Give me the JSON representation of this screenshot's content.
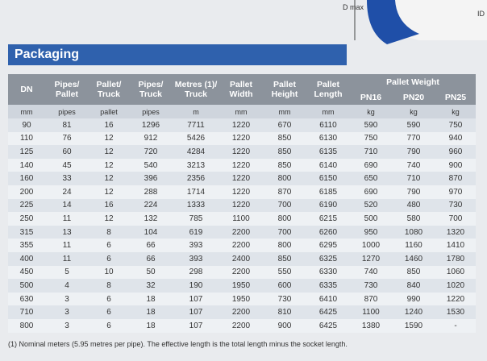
{
  "figure": {
    "dmax_label": "D max",
    "id_label": "ID"
  },
  "section_title": "Packaging",
  "table": {
    "header": [
      [
        "DN"
      ],
      [
        "Pipes/",
        "Pallet"
      ],
      [
        "Pallet/",
        "Truck"
      ],
      [
        "Pipes/",
        "Truck"
      ],
      [
        "Metres (1)/",
        "Truck"
      ],
      [
        "Pallet",
        "Width"
      ],
      [
        "Pallet",
        "Height"
      ],
      [
        "Pallet",
        "Length"
      ]
    ],
    "group_header": "Pallet Weight",
    "group_columns": [
      "PN16",
      "PN20",
      "PN25"
    ],
    "units": [
      "mm",
      "pipes",
      "pallet",
      "pipes",
      "m",
      "mm",
      "mm",
      "mm",
      "kg",
      "kg",
      "kg"
    ],
    "rows": [
      [
        "90",
        "81",
        "16",
        "1296",
        "7711",
        "1220",
        "670",
        "6110",
        "590",
        "590",
        "750"
      ],
      [
        "110",
        "76",
        "12",
        "912",
        "5426",
        "1220",
        "850",
        "6130",
        "750",
        "770",
        "940"
      ],
      [
        "125",
        "60",
        "12",
        "720",
        "4284",
        "1220",
        "850",
        "6135",
        "710",
        "790",
        "960"
      ],
      [
        "140",
        "45",
        "12",
        "540",
        "3213",
        "1220",
        "850",
        "6140",
        "690",
        "740",
        "900"
      ],
      [
        "160",
        "33",
        "12",
        "396",
        "2356",
        "1220",
        "800",
        "6150",
        "650",
        "710",
        "870"
      ],
      [
        "200",
        "24",
        "12",
        "288",
        "1714",
        "1220",
        "870",
        "6185",
        "690",
        "790",
        "970"
      ],
      [
        "225",
        "14",
        "16",
        "224",
        "1333",
        "1220",
        "700",
        "6190",
        "520",
        "480",
        "730"
      ],
      [
        "250",
        "11",
        "12",
        "132",
        "785",
        "1100",
        "800",
        "6215",
        "500",
        "580",
        "700"
      ],
      [
        "315",
        "13",
        "8",
        "104",
        "619",
        "2200",
        "700",
        "6260",
        "950",
        "1080",
        "1320"
      ],
      [
        "355",
        "11",
        "6",
        "66",
        "393",
        "2200",
        "800",
        "6295",
        "1000",
        "1160",
        "1410"
      ],
      [
        "400",
        "11",
        "6",
        "66",
        "393",
        "2400",
        "850",
        "6325",
        "1270",
        "1460",
        "1780"
      ],
      [
        "450",
        "5",
        "10",
        "50",
        "298",
        "2200",
        "550",
        "6330",
        "740",
        "850",
        "1060"
      ],
      [
        "500",
        "4",
        "8",
        "32",
        "190",
        "1950",
        "600",
        "6335",
        "730",
        "840",
        "1020"
      ],
      [
        "630",
        "3",
        "6",
        "18",
        "107",
        "1950",
        "730",
        "6410",
        "870",
        "990",
        "1220"
      ],
      [
        "710",
        "3",
        "6",
        "18",
        "107",
        "2200",
        "810",
        "6425",
        "1100",
        "1240",
        "1530"
      ],
      [
        "800",
        "3",
        "6",
        "18",
        "107",
        "2200",
        "900",
        "6425",
        "1380",
        "1590",
        "-"
      ]
    ]
  },
  "footnote": "(1) Nominal meters (5.95 metres per pipe). The effective length is the total length minus the socket length."
}
